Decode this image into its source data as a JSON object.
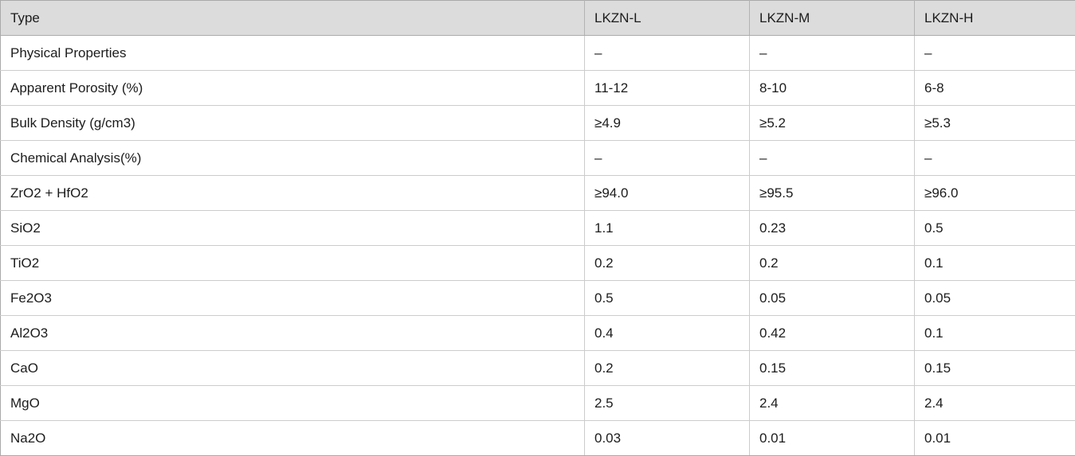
{
  "table": {
    "columns": [
      "Type",
      "LKZN-L",
      "LKZN-M",
      "LKZN-H"
    ],
    "rows": [
      {
        "label": "Physical Properties",
        "values": [
          "–",
          "–",
          "–"
        ]
      },
      {
        "label": "Apparent Porosity (%)",
        "values": [
          "11-12",
          "8-10",
          "6-8"
        ]
      },
      {
        "label": "Bulk Density (g/cm3)",
        "values": [
          "≥4.9",
          "≥5.2",
          "≥5.3"
        ]
      },
      {
        "label": "Chemical Analysis(%)",
        "values": [
          "–",
          "–",
          "–"
        ]
      },
      {
        "label": "ZrO2 + HfO2",
        "values": [
          "≥94.0",
          "≥95.5",
          "≥96.0"
        ]
      },
      {
        "label": "SiO2",
        "values": [
          "1.1",
          "0.23",
          "0.5"
        ]
      },
      {
        "label": "TiO2",
        "values": [
          "0.2",
          "0.2",
          "0.1"
        ]
      },
      {
        "label": "Fe2O3",
        "values": [
          "0.5",
          "0.05",
          "0.05"
        ]
      },
      {
        "label": "Al2O3",
        "values": [
          "0.4",
          "0.42",
          "0.1"
        ]
      },
      {
        "label": "CaO",
        "values": [
          "0.2",
          "0.15",
          "0.15"
        ]
      },
      {
        "label": "MgO",
        "values": [
          "2.5",
          "2.4",
          "2.4"
        ]
      },
      {
        "label": "Na2O",
        "values": [
          "0.03",
          "0.01",
          "0.01"
        ]
      }
    ],
    "colors": {
      "header_bg": "#dcdcdc",
      "outer_border": "#a9a9a9",
      "inner_border": "#cccccc",
      "text": "#1c1c1c"
    }
  }
}
